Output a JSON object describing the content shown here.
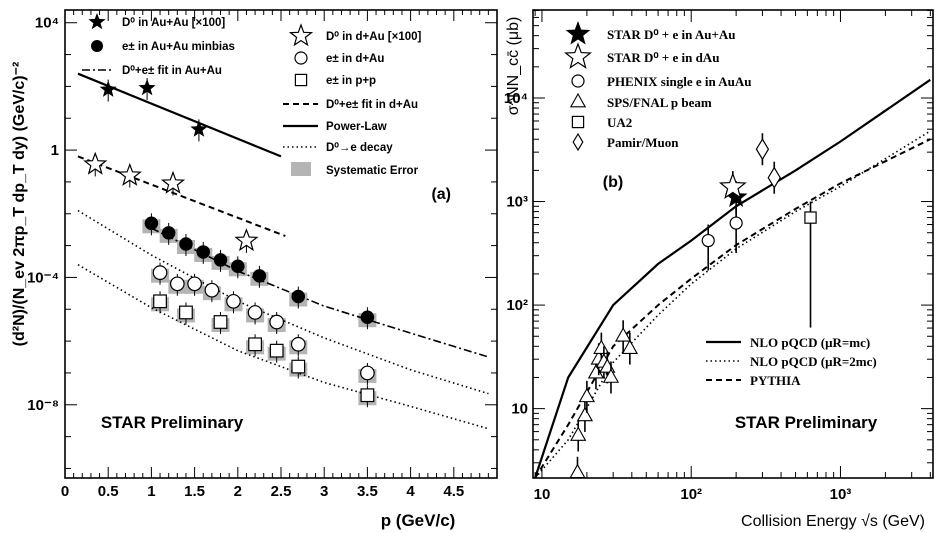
{
  "chart_data": [
    {
      "panel": "(a)",
      "type": "scatter",
      "xlabel": "p   (GeV/c)",
      "ylabel": "(d²N)/(N_ev 2πp_T dp_T dy) (GeV/c)⁻²",
      "xlim": [
        0,
        5
      ],
      "ylim_log10": [
        -10,
        5
      ],
      "y_scale": "log",
      "x_ticks": [
        "0",
        "0.5",
        "1",
        "1.5",
        "2",
        "2.5",
        "3",
        "3.5",
        "4",
        "4.5"
      ],
      "y_ticks": [
        "10⁻⁸",
        "10⁻⁴",
        "1",
        "10⁴"
      ],
      "annotation": "STAR Preliminary",
      "legend_left": [
        "D⁰ in Au+Au [×100]",
        "e± in Au+Au minbias",
        "D⁰+e± fit in Au+Au"
      ],
      "legend_right": [
        "D⁰ in d+Au [×100]",
        "e± in d+Au",
        "e± in p+p",
        "D⁰+e± fit in d+Au",
        "Power-Law",
        "D⁰→e decay",
        "Systematic Error"
      ],
      "series": [
        {
          "name": "D⁰ in Au+Au [×100]",
          "marker": "filled-star",
          "x": [
            0.5,
            0.95,
            1.55
          ],
          "y_log10": [
            1.9,
            1.95,
            0.65
          ]
        },
        {
          "name": "D⁰ in d+Au [×100]",
          "marker": "open-star",
          "x": [
            0.35,
            0.75,
            1.25,
            2.1
          ],
          "y_log10": [
            -0.45,
            -0.8,
            -1.05,
            -2.85
          ]
        },
        {
          "name": "e± in Au+Au minbias",
          "marker": "filled-circle",
          "x": [
            1.0,
            1.2,
            1.4,
            1.6,
            1.8,
            2.0,
            2.25,
            2.7,
            3.5
          ],
          "y_log10": [
            -2.3,
            -2.6,
            -2.95,
            -3.2,
            -3.45,
            -3.65,
            -3.95,
            -4.6,
            -5.25
          ]
        },
        {
          "name": "e± in d+Au",
          "marker": "open-circle",
          "x": [
            1.1,
            1.3,
            1.5,
            1.7,
            1.95,
            2.2,
            2.45,
            2.7,
            3.5
          ],
          "y_log10": [
            -3.85,
            -4.2,
            -4.2,
            -4.4,
            -4.75,
            -5.1,
            -5.4,
            -6.1,
            -7.0
          ]
        },
        {
          "name": "e± in p+p",
          "marker": "open-square",
          "x": [
            1.1,
            1.4,
            1.8,
            2.2,
            2.45,
            2.7,
            3.5
          ],
          "y_log10": [
            -4.75,
            -5.1,
            -5.4,
            -6.1,
            -6.3,
            -6.8,
            -7.7
          ]
        }
      ],
      "curves": [
        {
          "name": "Power-Law",
          "style": "solid",
          "x": [
            0.15,
            2.5
          ],
          "y_log10": [
            2.4,
            -0.2
          ]
        },
        {
          "name": "D⁰+e± fit in d+Au",
          "style": "dashed",
          "x": [
            0.15,
            2.55
          ],
          "y_log10": [
            -0.2,
            -2.7
          ]
        },
        {
          "name": "D⁰+e± fit in Au+Au",
          "style": "dashdot",
          "x": [
            1.0,
            2.0,
            3.0,
            4.0,
            4.9
          ],
          "y_log10": [
            -2.45,
            -3.8,
            -4.9,
            -5.75,
            -6.5
          ]
        },
        {
          "name": "D⁰→e decay",
          "style": "dotted",
          "x": [
            0.15,
            1.0,
            2.0,
            3.0,
            4.0,
            4.9
          ],
          "y_log10": [
            -1.9,
            -3.3,
            -4.75,
            -5.9,
            -6.9,
            -7.65
          ]
        },
        {
          "name": "D⁰→e decay (lower)",
          "style": "dotted",
          "x": [
            0.15,
            1.0,
            2.0,
            3.0,
            4.0,
            4.9
          ],
          "y_log10": [
            -3.6,
            -4.95,
            -6.3,
            -7.3,
            -8.05,
            -8.75
          ]
        }
      ]
    },
    {
      "panel": "(b)",
      "type": "scatter",
      "xlabel": "Collision Energy √s (GeV)",
      "ylabel": "σ^NN_cc̄ (μb)",
      "x_scale": "log",
      "y_scale": "log",
      "xlim_log10": [
        0.94,
        3.62
      ],
      "ylim_log10": [
        0.33,
        4.85
      ],
      "x_ticks": [
        "10",
        "10²",
        "10³"
      ],
      "y_ticks": [
        "10",
        "10²",
        "10³",
        "10⁴"
      ],
      "annotation": "STAR Preliminary",
      "legend": [
        "STAR D⁰ + e in Au+Au",
        "STAR D⁰ + e in dAu",
        "PHENIX single e in AuAu",
        "SPS/FNAL p beam",
        "UA2",
        "Pamir/Muon"
      ],
      "curve_legend": [
        "NLO pQCD (μR=mc)",
        "NLO pQCD (μR=2mc)",
        "PYTHIA"
      ],
      "series": [
        {
          "name": "STAR D⁰ + e in Au+Au",
          "marker": "filled-star",
          "x": [
            200
          ],
          "y": [
            1100
          ]
        },
        {
          "name": "STAR D⁰ + e in dAu",
          "marker": "open-star",
          "x": [
            190
          ],
          "y": [
            1380
          ]
        },
        {
          "name": "PHENIX single e in AuAu",
          "marker": "open-circle",
          "x": [
            130,
            200
          ],
          "y": [
            420,
            620
          ]
        },
        {
          "name": "SPS/FNAL p beam",
          "marker": "open-triangle",
          "x": [
            17.3,
            17.5,
            19.4,
            20,
            23,
            24,
            25,
            26,
            27.4,
            29,
            35,
            38.8
          ],
          "y": [
            2.4,
            5.5,
            8.5,
            13,
            22,
            30,
            38,
            28,
            25,
            20,
            50,
            38
          ]
        },
        {
          "name": "UA2",
          "marker": "open-square",
          "x": [
            630
          ],
          "y": [
            700
          ]
        },
        {
          "name": "Pamir/Muon",
          "marker": "open-diamond",
          "x": [
            300,
            360
          ],
          "y": [
            3200,
            1700
          ]
        }
      ],
      "curves": [
        {
          "name": "NLO pQCD (μR=mc)",
          "style": "solid",
          "x": [
            9,
            15,
            30,
            60,
            100,
            200,
            500,
            1000,
            4000
          ],
          "y": [
            2,
            20,
            100,
            250,
            420,
            900,
            2000,
            3800,
            15000
          ]
        },
        {
          "name": "NLO pQCD (μR=2mc)",
          "style": "dotted",
          "x": [
            9,
            15,
            30,
            60,
            100,
            200,
            500,
            1000,
            4000
          ],
          "y": [
            1.2,
            5,
            28,
            80,
            160,
            350,
            800,
            1400,
            4800
          ]
        },
        {
          "name": "PYTHIA",
          "style": "dashed",
          "x": [
            9,
            15,
            30,
            60,
            100,
            200,
            500,
            1000,
            4000
          ],
          "y": [
            1.8,
            7,
            40,
            100,
            180,
            380,
            850,
            1500,
            4000
          ]
        }
      ]
    }
  ]
}
